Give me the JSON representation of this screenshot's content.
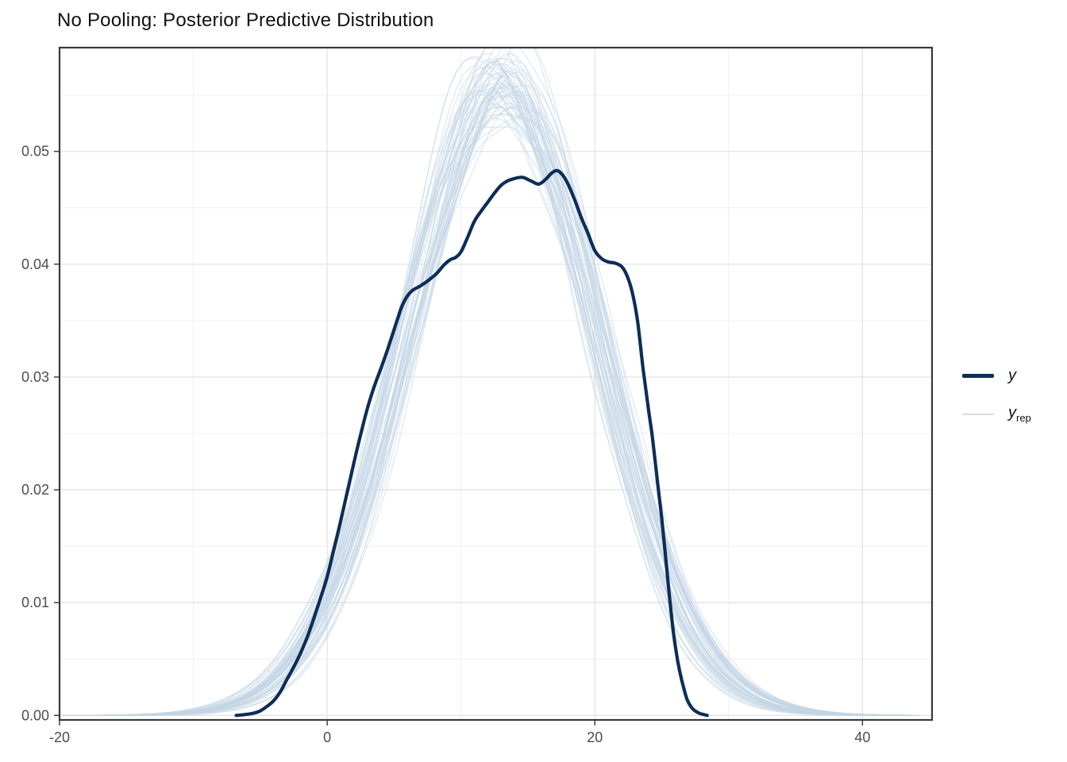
{
  "title": "No Pooling: Posterior Predictive Distribution",
  "legend": {
    "position": "right",
    "y_label": "y",
    "yrep_label": "y",
    "yrep_sub": "rep"
  },
  "colors": {
    "y_line": "#0d2d58",
    "yrep_line": "#c3d6e6",
    "panel_border": "#3a3a3a",
    "grid_major": "#e3e3e3",
    "grid_minor": "#f0f0f0",
    "tick_mark": "#333333",
    "tick_label": "#4d4d4d",
    "background": "#ffffff"
  },
  "chart_data": {
    "type": "line",
    "subtype": "density-overlay",
    "title": "No Pooling: Posterior Predictive Distribution",
    "xlabel": "",
    "ylabel": "",
    "grid": true,
    "legend_position": "right",
    "xlim": [
      -20,
      45.2
    ],
    "ylim": [
      -0.0004,
      0.0592
    ],
    "x_ticks": [
      -20,
      0,
      20,
      40
    ],
    "x_minor_ticks": [
      -10,
      10,
      30
    ],
    "y_ticks": [
      0,
      0.01,
      0.02,
      0.03,
      0.04,
      0.05
    ],
    "y_tick_labels": [
      "0.00",
      "0.01",
      "0.02",
      "0.03",
      "0.04",
      "0.05"
    ],
    "y_minor_ticks": [
      0.005,
      0.015,
      0.025,
      0.035,
      0.045,
      0.055
    ],
    "series": [
      {
        "name": "y",
        "role": "observed-density",
        "color": "#0d2d58",
        "line_width": 4.2,
        "points": [
          [
            -6.8,
            0.0
          ],
          [
            -6.0,
            0.0001
          ],
          [
            -5.5,
            0.0002
          ],
          [
            -5.0,
            0.0004
          ],
          [
            -4.5,
            0.0008
          ],
          [
            -4.0,
            0.0013
          ],
          [
            -3.5,
            0.0021
          ],
          [
            -3.0,
            0.0032
          ],
          [
            -2.5,
            0.0043
          ],
          [
            -2.0,
            0.0055
          ],
          [
            -1.5,
            0.0069
          ],
          [
            -1.0,
            0.0086
          ],
          [
            -0.5,
            0.0104
          ],
          [
            0.0,
            0.0123
          ],
          [
            0.5,
            0.0147
          ],
          [
            1.0,
            0.0172
          ],
          [
            1.5,
            0.0198
          ],
          [
            2.0,
            0.0224
          ],
          [
            2.5,
            0.0249
          ],
          [
            3.0,
            0.0272
          ],
          [
            3.5,
            0.0291
          ],
          [
            4.0,
            0.0307
          ],
          [
            4.5,
            0.0324
          ],
          [
            5.0,
            0.0342
          ],
          [
            5.3,
            0.0353
          ],
          [
            5.6,
            0.0363
          ],
          [
            6.0,
            0.0372
          ],
          [
            6.4,
            0.0377
          ],
          [
            7.0,
            0.0381
          ],
          [
            7.6,
            0.0386
          ],
          [
            8.2,
            0.0392
          ],
          [
            8.7,
            0.0399
          ],
          [
            9.2,
            0.0404
          ],
          [
            9.6,
            0.0406
          ],
          [
            10.0,
            0.0411
          ],
          [
            10.5,
            0.0424
          ],
          [
            11.0,
            0.0438
          ],
          [
            11.5,
            0.0447
          ],
          [
            12.0,
            0.0455
          ],
          [
            12.5,
            0.0463
          ],
          [
            13.0,
            0.047
          ],
          [
            13.5,
            0.0474
          ],
          [
            14.0,
            0.0476
          ],
          [
            14.6,
            0.0477
          ],
          [
            15.2,
            0.0474
          ],
          [
            15.8,
            0.0471
          ],
          [
            16.3,
            0.0475
          ],
          [
            16.8,
            0.0481
          ],
          [
            17.2,
            0.0483
          ],
          [
            17.6,
            0.0479
          ],
          [
            18.0,
            0.0471
          ],
          [
            18.5,
            0.0457
          ],
          [
            19.0,
            0.0441
          ],
          [
            19.5,
            0.0427
          ],
          [
            20.0,
            0.0412
          ],
          [
            20.5,
            0.0405
          ],
          [
            21.0,
            0.0402
          ],
          [
            21.5,
            0.0401
          ],
          [
            22.0,
            0.0398
          ],
          [
            22.4,
            0.039
          ],
          [
            22.8,
            0.0375
          ],
          [
            23.2,
            0.0349
          ],
          [
            23.6,
            0.0308
          ],
          [
            24.0,
            0.0272
          ],
          [
            24.3,
            0.0247
          ],
          [
            24.7,
            0.0205
          ],
          [
            25.0,
            0.0175
          ],
          [
            25.3,
            0.0139
          ],
          [
            25.6,
            0.0103
          ],
          [
            25.9,
            0.0071
          ],
          [
            26.2,
            0.0048
          ],
          [
            26.5,
            0.0031
          ],
          [
            26.9,
            0.0014
          ],
          [
            27.3,
            0.0006
          ],
          [
            27.8,
            0.0002
          ],
          [
            28.4,
            0.0
          ]
        ]
      },
      {
        "name": "y_rep",
        "role": "replicated-densities",
        "color": "#c3d6e6",
        "line_width": 1.3,
        "opacity": 0.5,
        "count": 60,
        "x_range": [
          -19.8,
          44.6
        ],
        "model": {
          "shape": "normal",
          "mean": 13.2,
          "mean_jitter": 1.2,
          "sd": 7.1,
          "sd_jitter": 0.35,
          "peak_density_range": [
            0.052,
            0.0585
          ]
        }
      }
    ]
  }
}
